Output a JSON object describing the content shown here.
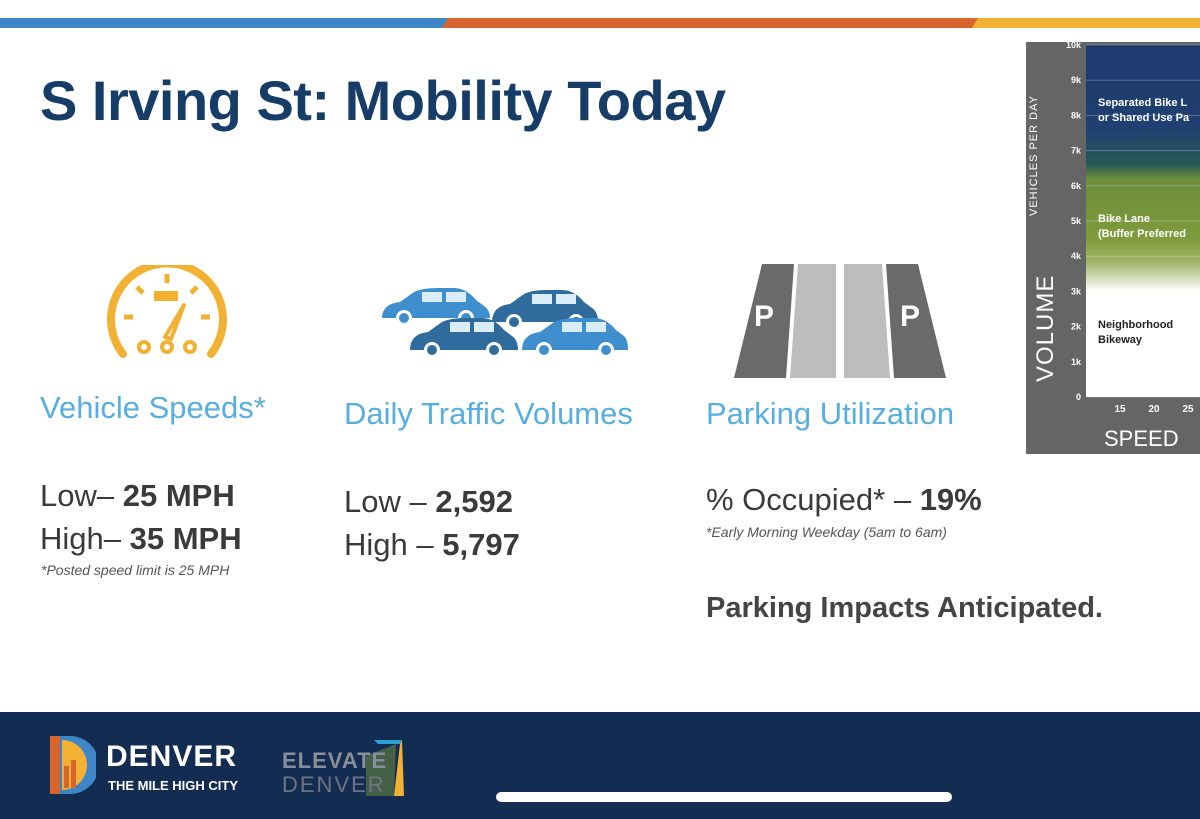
{
  "slide": {
    "title": "S Irving St: Mobility Today",
    "colors": {
      "title": "#163c68",
      "accent_blue": "#57aee0",
      "orange": "#d8642e",
      "gold": "#f2b133",
      "footer": "#132d52"
    }
  },
  "speeds": {
    "icon": "speedometer-icon",
    "heading": "Vehicle Speeds*",
    "low_label": "Low–",
    "low_value": "25 MPH",
    "high_label": "High–",
    "high_value": "35 MPH",
    "note": "*Posted speed limit is 25 MPH"
  },
  "traffic": {
    "icon": "cars-icon",
    "heading": "Daily Traffic Volumes",
    "low_label": "Low –",
    "low_value": "2,592",
    "high_label": "High –",
    "high_value": "5,797"
  },
  "parking": {
    "icon": "parking-lanes-icon",
    "heading": "Parking Utilization",
    "occupied_label": "% Occupied* –",
    "occupied_value": "19%",
    "note": "*Early Morning Weekday (5am to 6am)",
    "impact": "Parking Impacts Anticipated.",
    "sign_letter": "P"
  },
  "chart_data": {
    "type": "heatmap",
    "title": "",
    "xlabel": "SPEED",
    "ylabel": "VOLUME",
    "ylabel_sub": "VEHICLES PER DAY",
    "x_ticks": [
      "15",
      "20",
      "25"
    ],
    "y_ticks": [
      "0",
      "1k",
      "2k",
      "3k",
      "4k",
      "5k",
      "6k",
      "7k",
      "8k",
      "9k",
      "10k"
    ],
    "ylim": [
      0,
      10000
    ],
    "zones": [
      {
        "label_line1": "Separated Bike L",
        "label_line2": "or Shared Use Pa",
        "color": "#1e3a6e"
      },
      {
        "label_line1": "Bike Lane",
        "label_line2": "(Buffer Preferred",
        "color": "#7f9c3c"
      },
      {
        "label_line1": "Neighborhood",
        "label_line2": "Bikeway",
        "color": "#ffffff"
      }
    ]
  },
  "footer": {
    "logo_name": "DENVER",
    "logo_tagline": "THE MILE HIGH CITY",
    "partner_line1": "ELEVATE",
    "partner_line2": "DENVER"
  }
}
